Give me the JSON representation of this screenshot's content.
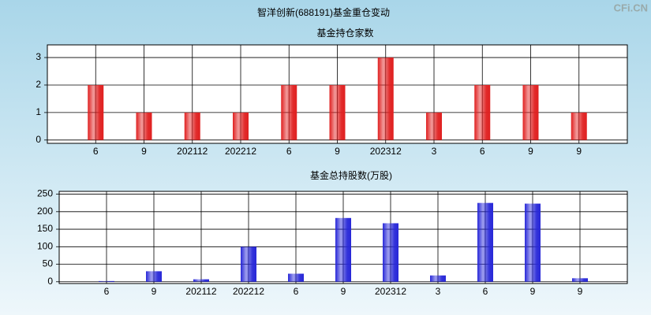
{
  "title": "智洋创新(688191)基金重仓变动",
  "watermark": "CFi.CN",
  "chart_data": [
    {
      "type": "bar",
      "title": "基金持仓家数",
      "categories": [
        "6",
        "9",
        "202112",
        "202212",
        "6",
        "9",
        "202312",
        "3",
        "6",
        "9",
        "9"
      ],
      "values": [
        2,
        1,
        1,
        1,
        2,
        2,
        3,
        1,
        2,
        2,
        1
      ],
      "color": "#e02020",
      "ylim": [
        -0.12,
        3.46
      ],
      "yticks": [
        0,
        1,
        2,
        3
      ],
      "grid": true
    },
    {
      "type": "bar",
      "title": "基金总持股数(万股)",
      "categories": [
        "6",
        "9",
        "202112",
        "202212",
        "6",
        "9",
        "202312",
        "3",
        "6",
        "9",
        "9"
      ],
      "values": [
        2,
        30,
        7,
        100,
        23,
        182,
        167,
        18,
        225,
        223,
        10
      ],
      "color": "#2828d8",
      "ylim": [
        -5,
        258
      ],
      "yticks": [
        0,
        50,
        100,
        150,
        200,
        250
      ],
      "grid": true
    }
  ]
}
